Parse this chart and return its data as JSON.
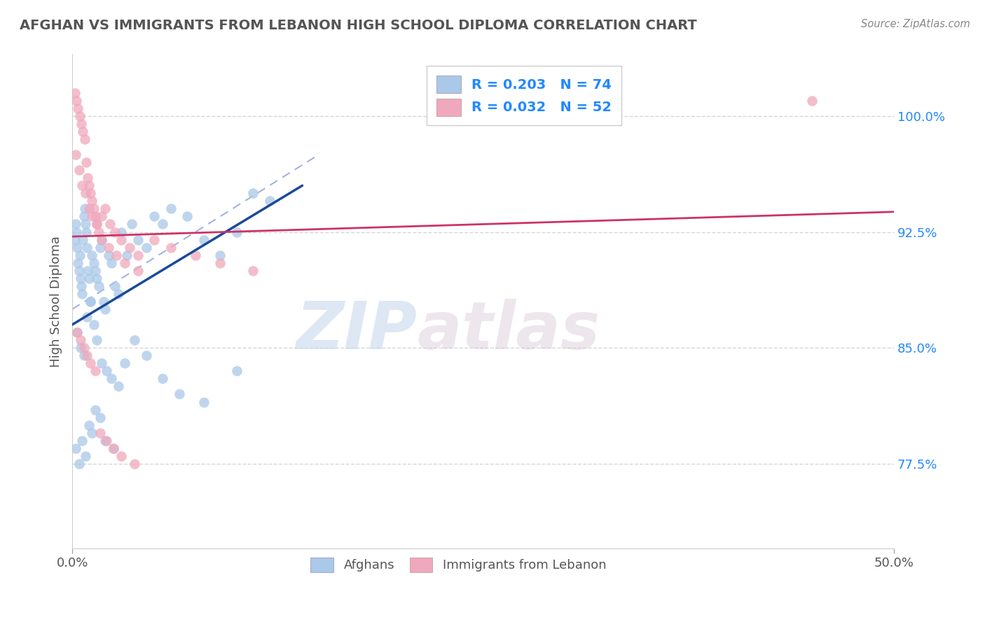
{
  "title": "AFGHAN VS IMMIGRANTS FROM LEBANON HIGH SCHOOL DIPLOMA CORRELATION CHART",
  "source": "Source: ZipAtlas.com",
  "ytick_positions": [
    77.5,
    85.0,
    92.5,
    100.0
  ],
  "ytick_labels": [
    "77.5%",
    "85.0%",
    "92.5%",
    "100.0%"
  ],
  "xtick_positions": [
    0.0,
    50.0
  ],
  "xtick_labels": [
    "0.0%",
    "50.0%"
  ],
  "legend_r1": "R = 0.203",
  "legend_n1": "N = 74",
  "legend_r2": "R = 0.032",
  "legend_n2": "N = 52",
  "blue_color": "#aac8e8",
  "pink_color": "#f0a8bc",
  "blue_line_color": "#1a4a9a",
  "pink_line_color": "#cc3366",
  "dashed_line_color": "#99aadd",
  "ylabel": "High School Diploma",
  "watermark_zip": "ZIP",
  "watermark_atlas": "atlas",
  "xmin": 0.0,
  "xmax": 50.0,
  "ymin": 72.0,
  "ymax": 104.0,
  "blue_scatter_x": [
    0.15,
    0.2,
    0.25,
    0.3,
    0.35,
    0.4,
    0.45,
    0.5,
    0.55,
    0.6,
    0.65,
    0.7,
    0.75,
    0.8,
    0.85,
    0.9,
    0.95,
    1.0,
    1.1,
    1.2,
    1.3,
    1.4,
    1.5,
    1.6,
    1.7,
    1.8,
    1.9,
    2.0,
    2.2,
    2.4,
    2.6,
    2.8,
    3.0,
    3.3,
    3.6,
    4.0,
    4.5,
    5.0,
    5.5,
    6.0,
    7.0,
    8.0,
    9.0,
    10.0,
    11.0,
    12.0,
    0.3,
    0.5,
    0.7,
    0.9,
    1.1,
    1.3,
    1.5,
    1.8,
    2.1,
    2.4,
    2.8,
    3.2,
    3.8,
    4.5,
    5.5,
    6.5,
    8.0,
    10.0,
    0.2,
    0.4,
    0.6,
    0.8,
    1.0,
    1.2,
    1.4,
    1.7,
    2.0,
    2.5
  ],
  "blue_scatter_y": [
    92.0,
    93.0,
    92.5,
    91.5,
    90.5,
    90.0,
    91.0,
    89.5,
    89.0,
    88.5,
    92.0,
    93.5,
    94.0,
    93.0,
    92.5,
    91.5,
    90.0,
    89.5,
    88.0,
    91.0,
    90.5,
    90.0,
    89.5,
    89.0,
    91.5,
    92.0,
    88.0,
    87.5,
    91.0,
    90.5,
    89.0,
    88.5,
    92.5,
    91.0,
    93.0,
    92.0,
    91.5,
    93.5,
    93.0,
    94.0,
    93.5,
    92.0,
    91.0,
    92.5,
    95.0,
    94.5,
    86.0,
    85.0,
    84.5,
    87.0,
    88.0,
    86.5,
    85.5,
    84.0,
    83.5,
    83.0,
    82.5,
    84.0,
    85.5,
    84.5,
    83.0,
    82.0,
    81.5,
    83.5,
    78.5,
    77.5,
    79.0,
    78.0,
    80.0,
    79.5,
    81.0,
    80.5,
    79.0,
    78.5
  ],
  "pink_scatter_x": [
    0.15,
    0.25,
    0.35,
    0.45,
    0.55,
    0.65,
    0.75,
    0.85,
    0.95,
    1.0,
    1.1,
    1.2,
    1.3,
    1.4,
    1.5,
    1.6,
    1.8,
    2.0,
    2.3,
    2.6,
    3.0,
    3.5,
    4.0,
    5.0,
    6.0,
    7.5,
    9.0,
    11.0,
    0.2,
    0.4,
    0.6,
    0.8,
    1.0,
    1.2,
    1.5,
    1.8,
    2.2,
    2.7,
    3.2,
    4.0,
    0.3,
    0.5,
    0.7,
    0.9,
    1.1,
    1.4,
    1.7,
    2.1,
    2.5,
    3.0,
    3.8,
    45.0
  ],
  "pink_scatter_y": [
    101.5,
    101.0,
    100.5,
    100.0,
    99.5,
    99.0,
    98.5,
    97.0,
    96.0,
    95.5,
    95.0,
    94.5,
    94.0,
    93.5,
    93.0,
    92.5,
    93.5,
    94.0,
    93.0,
    92.5,
    92.0,
    91.5,
    91.0,
    92.0,
    91.5,
    91.0,
    90.5,
    90.0,
    97.5,
    96.5,
    95.5,
    95.0,
    94.0,
    93.5,
    93.0,
    92.0,
    91.5,
    91.0,
    90.5,
    90.0,
    86.0,
    85.5,
    85.0,
    84.5,
    84.0,
    83.5,
    79.5,
    79.0,
    78.5,
    78.0,
    77.5,
    101.0
  ],
  "blue_line_x0": 0.0,
  "blue_line_y0": 86.5,
  "blue_line_x1": 14.0,
  "blue_line_y1": 95.5,
  "pink_line_x0": 0.0,
  "pink_line_y0": 92.2,
  "pink_line_x1": 50.0,
  "pink_line_y1": 93.8,
  "dash_line_x0": 0.0,
  "dash_line_y0": 87.5,
  "dash_line_x1": 15.0,
  "dash_line_y1": 97.5
}
